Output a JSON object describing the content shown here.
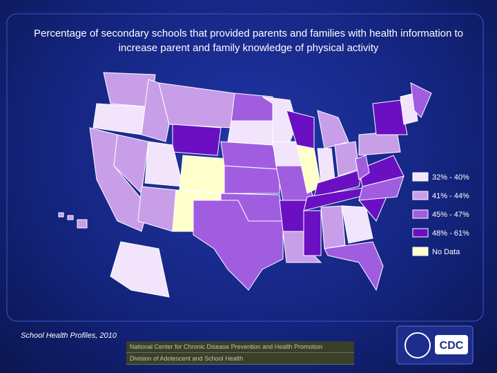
{
  "title": "Percentage of secondary schools that provided parents and families with health information to increase parent and family knowledge of physical activity",
  "legend": [
    {
      "label": "32% - 40%"
    },
    {
      "label": "41% - 44%"
    },
    {
      "label": "45% - 47%"
    },
    {
      "label": "48% - 61%"
    },
    {
      "label": "No Data"
    }
  ],
  "source": "School Health Profiles, 2010",
  "footer": [
    "National Center for Chronic Disease Prevention and Health Promotion",
    "Division of Adolescent and School Health"
  ],
  "logo": "CDC"
}
